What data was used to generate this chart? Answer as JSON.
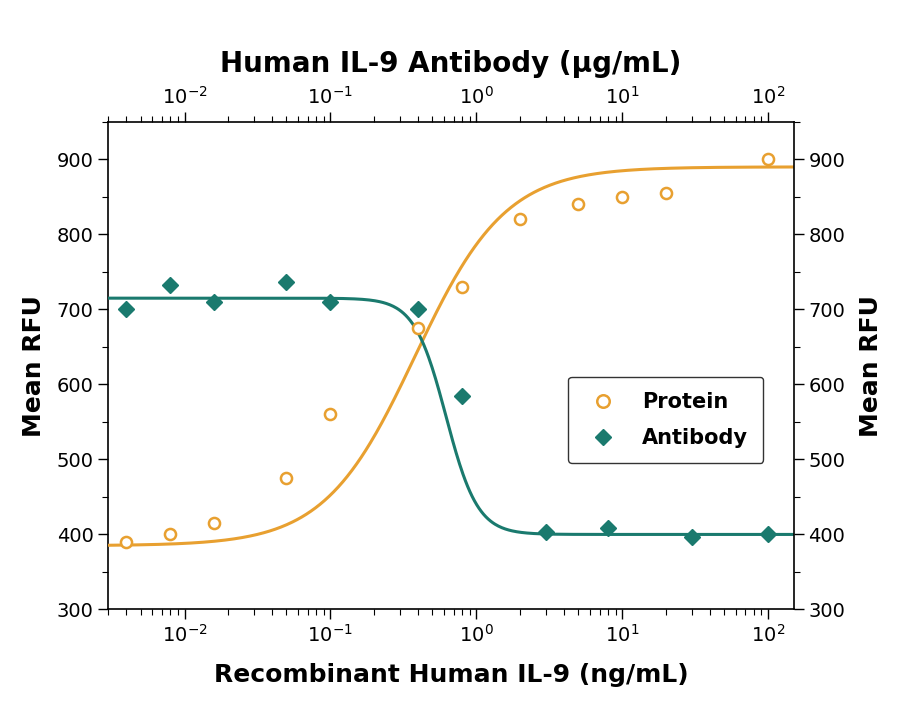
{
  "title_top": "Human IL-9 Antibody (μg/mL)",
  "xlabel": "Recombinant Human IL-9 (ng/mL)",
  "ylabel_left": "Mean RFU",
  "ylabel_right": "Mean RFU",
  "protein_x": [
    0.004,
    0.008,
    0.016,
    0.05,
    0.1,
    0.4,
    0.8,
    2,
    5,
    10,
    20,
    100
  ],
  "protein_y": [
    390,
    400,
    415,
    475,
    560,
    675,
    730,
    820,
    840,
    850,
    855,
    900
  ],
  "antibody_x": [
    0.004,
    0.008,
    0.016,
    0.05,
    0.1,
    0.4,
    0.8,
    3,
    8,
    30,
    100
  ],
  "antibody_y": [
    700,
    733,
    710,
    737,
    710,
    700,
    585,
    403,
    408,
    397,
    400
  ],
  "protein_color": "#E8A030",
  "antibody_color": "#1A7A6E",
  "ylim": [
    300,
    950
  ],
  "yticks": [
    300,
    400,
    500,
    600,
    700,
    800,
    900
  ],
  "xlim": [
    0.003,
    150
  ],
  "protein_4pl": [
    385,
    890,
    0.38,
    1.4
  ],
  "antibody_4pl": [
    400,
    715,
    0.62,
    4.0
  ],
  "legend_labels": [
    "Protein",
    "Antibody"
  ],
  "background_color": "#FFFFFF",
  "title_fontsize": 20,
  "label_fontsize": 18,
  "tick_fontsize": 14
}
